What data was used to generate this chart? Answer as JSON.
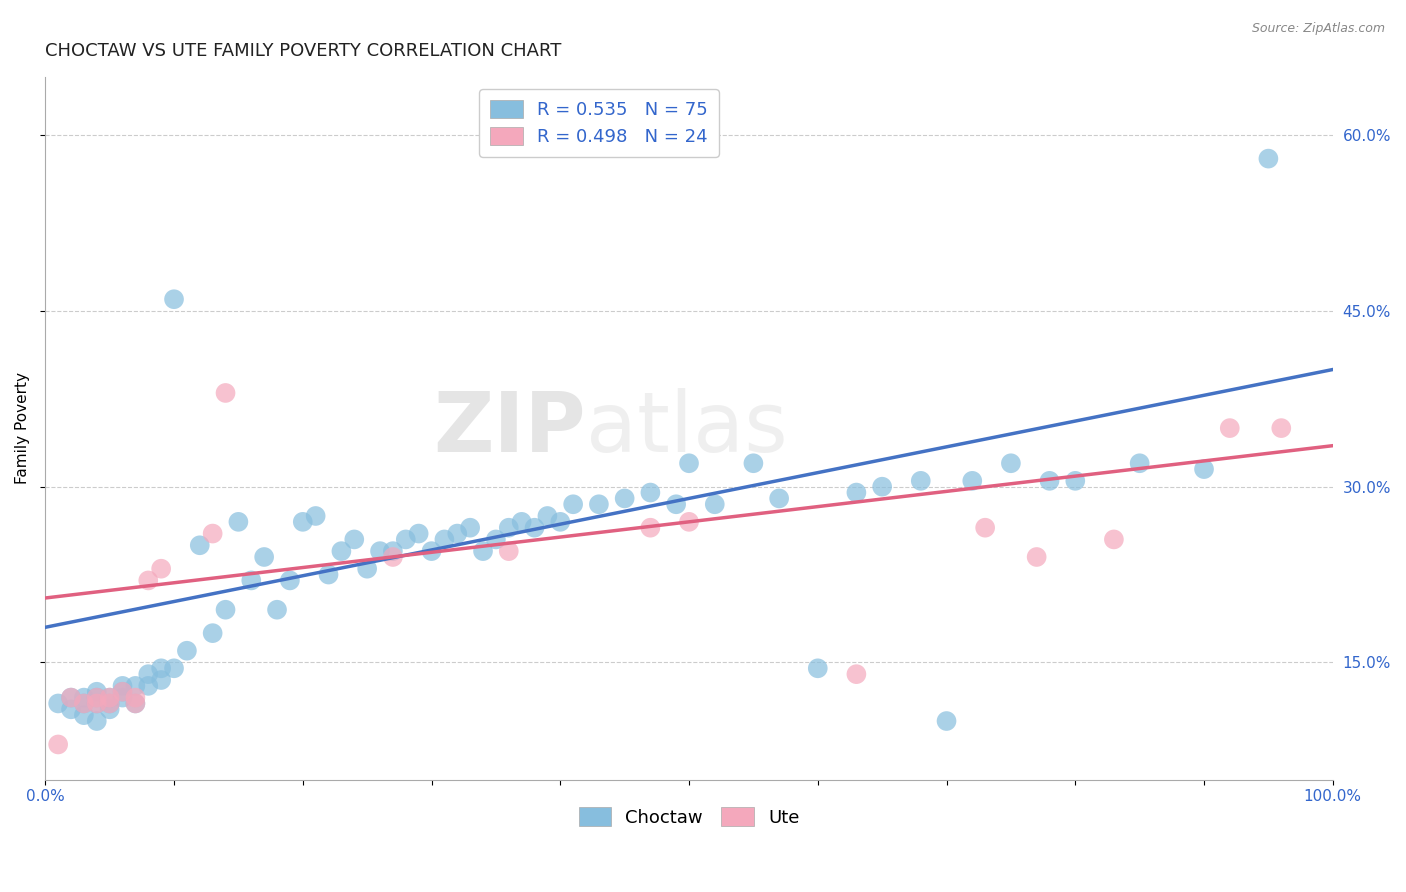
{
  "title": "CHOCTAW VS UTE FAMILY POVERTY CORRELATION CHART",
  "source_text": "Source: ZipAtlas.com",
  "xlabel": "",
  "ylabel": "Family Poverty",
  "watermark": "ZIPatlas",
  "xlim": [
    0.0,
    1.0
  ],
  "ylim": [
    0.05,
    0.65
  ],
  "xticks": [
    0.0,
    0.1,
    0.2,
    0.3,
    0.4,
    0.5,
    0.6,
    0.7,
    0.8,
    0.9,
    1.0
  ],
  "xticklabels": [
    "0.0%",
    "",
    "",
    "",
    "",
    "",
    "",
    "",
    "",
    "",
    "100.0%"
  ],
  "yticks": [
    0.15,
    0.3,
    0.45,
    0.6
  ],
  "yticklabels": [
    "15.0%",
    "30.0%",
    "45.0%",
    "60.0%"
  ],
  "choctaw_color": "#87BEDE",
  "ute_color": "#F4A8BC",
  "choctaw_line_color": "#4472C4",
  "ute_line_color": "#E06080",
  "choctaw_R": 0.535,
  "choctaw_N": 75,
  "ute_R": 0.498,
  "ute_N": 24,
  "legend_label_choctaw": "Choctaw",
  "legend_label_ute": "Ute",
  "choctaw_line_x0": 0.0,
  "choctaw_line_y0": 0.18,
  "choctaw_line_x1": 1.0,
  "choctaw_line_y1": 0.4,
  "ute_line_x0": 0.0,
  "ute_line_y0": 0.205,
  "ute_line_x1": 1.0,
  "ute_line_y1": 0.335,
  "choctaw_x": [
    0.01,
    0.02,
    0.02,
    0.03,
    0.03,
    0.03,
    0.04,
    0.04,
    0.04,
    0.04,
    0.05,
    0.05,
    0.05,
    0.06,
    0.06,
    0.06,
    0.07,
    0.07,
    0.08,
    0.08,
    0.09,
    0.09,
    0.1,
    0.1,
    0.11,
    0.12,
    0.13,
    0.14,
    0.15,
    0.16,
    0.17,
    0.18,
    0.19,
    0.2,
    0.21,
    0.22,
    0.23,
    0.24,
    0.25,
    0.26,
    0.27,
    0.28,
    0.29,
    0.3,
    0.31,
    0.32,
    0.33,
    0.34,
    0.35,
    0.36,
    0.37,
    0.38,
    0.39,
    0.4,
    0.41,
    0.43,
    0.45,
    0.47,
    0.49,
    0.5,
    0.52,
    0.55,
    0.57,
    0.6,
    0.63,
    0.65,
    0.68,
    0.7,
    0.72,
    0.75,
    0.78,
    0.8,
    0.85,
    0.9,
    0.95
  ],
  "choctaw_y": [
    0.115,
    0.11,
    0.12,
    0.105,
    0.115,
    0.12,
    0.1,
    0.115,
    0.12,
    0.125,
    0.11,
    0.115,
    0.12,
    0.12,
    0.125,
    0.13,
    0.115,
    0.13,
    0.13,
    0.14,
    0.135,
    0.145,
    0.46,
    0.145,
    0.16,
    0.25,
    0.175,
    0.195,
    0.27,
    0.22,
    0.24,
    0.195,
    0.22,
    0.27,
    0.275,
    0.225,
    0.245,
    0.255,
    0.23,
    0.245,
    0.245,
    0.255,
    0.26,
    0.245,
    0.255,
    0.26,
    0.265,
    0.245,
    0.255,
    0.265,
    0.27,
    0.265,
    0.275,
    0.27,
    0.285,
    0.285,
    0.29,
    0.295,
    0.285,
    0.32,
    0.285,
    0.32,
    0.29,
    0.145,
    0.295,
    0.3,
    0.305,
    0.1,
    0.305,
    0.32,
    0.305,
    0.305,
    0.32,
    0.315,
    0.58
  ],
  "ute_x": [
    0.01,
    0.02,
    0.03,
    0.04,
    0.04,
    0.05,
    0.05,
    0.06,
    0.07,
    0.07,
    0.08,
    0.09,
    0.13,
    0.14,
    0.27,
    0.36,
    0.47,
    0.5,
    0.63,
    0.73,
    0.77,
    0.83,
    0.92,
    0.96
  ],
  "ute_y": [
    0.08,
    0.12,
    0.115,
    0.115,
    0.12,
    0.115,
    0.12,
    0.125,
    0.115,
    0.12,
    0.22,
    0.23,
    0.26,
    0.38,
    0.24,
    0.245,
    0.265,
    0.27,
    0.14,
    0.265,
    0.24,
    0.255,
    0.35,
    0.35
  ],
  "grid_color": "#cccccc",
  "background_color": "#ffffff",
  "title_fontsize": 13,
  "axis_label_fontsize": 11,
  "tick_fontsize": 11,
  "legend_fontsize": 13
}
